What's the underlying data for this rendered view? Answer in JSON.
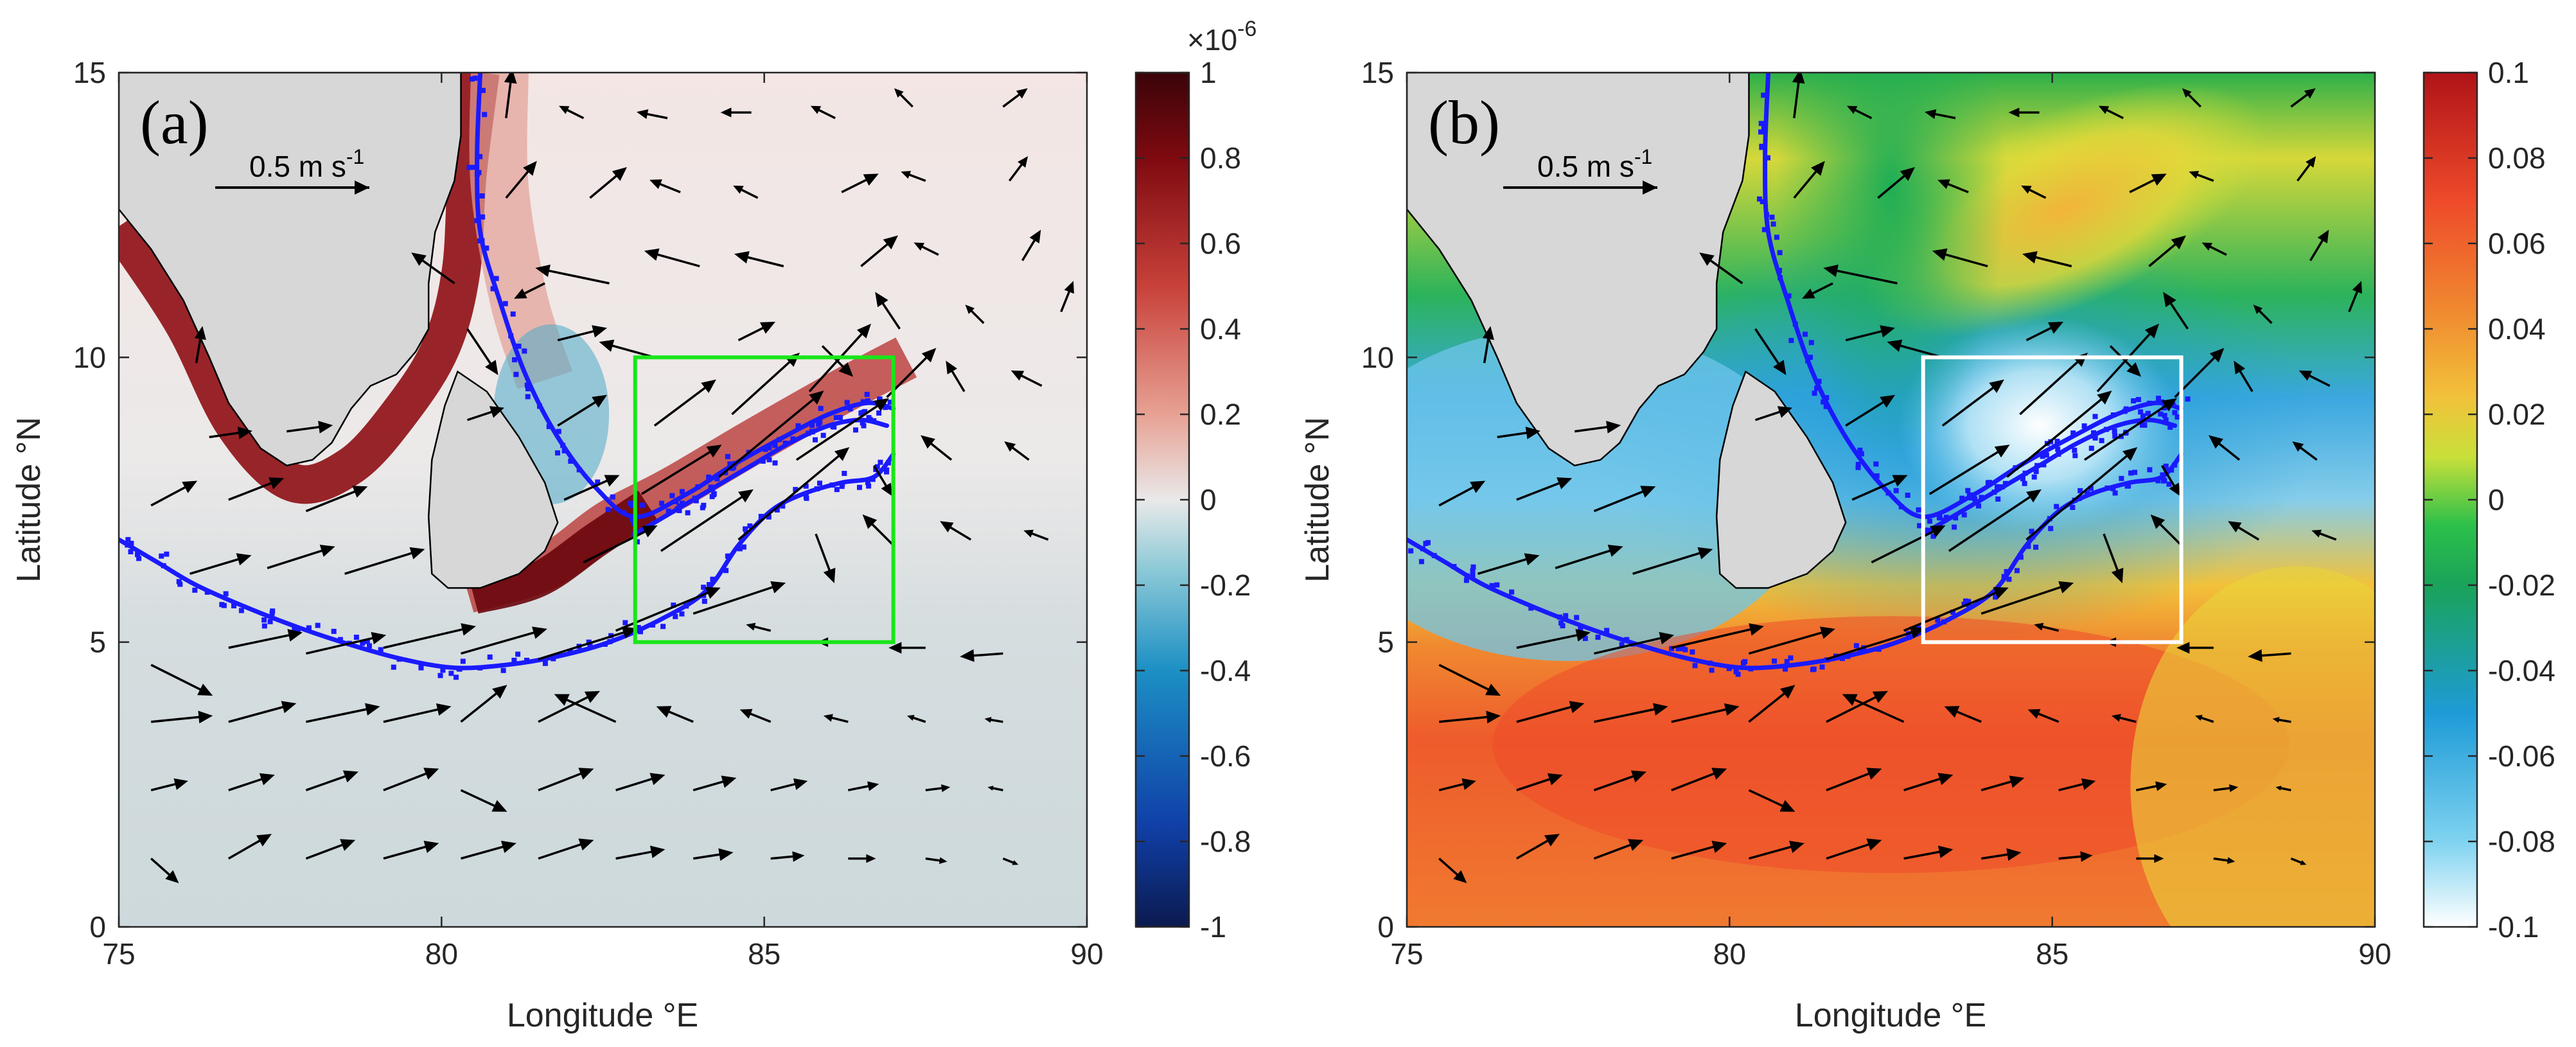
{
  "chart_data": [
    {
      "panel_label": "(a)",
      "type": "heatmap",
      "xlabel": "Longitude °E",
      "ylabel": "Latitude °N",
      "xlim": [
        75,
        90
      ],
      "ylim": [
        0,
        15
      ],
      "xticks": [
        "75",
        "80",
        "85",
        "90"
      ],
      "yticks": [
        "0",
        "5",
        "10",
        "15"
      ],
      "scale_arrow_label": "0.5 m s",
      "scale_arrow_sup": "-1",
      "colorbar": {
        "exponent_label": "×10",
        "exponent_sup": "-6",
        "range": [
          -1,
          1
        ],
        "ticks": [
          "-1",
          "-0.8",
          "-0.6",
          "-0.4",
          "-0.2",
          "0",
          "0.2",
          "0.4",
          "0.6",
          "0.8",
          "1"
        ],
        "colormap": [
          "#0b1a4f",
          "#1040a8",
          "#1c8fc4",
          "#8ecad7",
          "#e9e9e9",
          "#e7a193",
          "#c8413a",
          "#7e0a10",
          "#3a0409"
        ]
      },
      "box": {
        "lon": [
          83,
          87
        ],
        "lat": [
          5,
          10
        ],
        "color": "#19e619"
      },
      "background_color": "#f0eeee"
    },
    {
      "panel_label": "(b)",
      "type": "heatmap",
      "xlabel": "Longitude °E",
      "ylabel": "Latitude °N",
      "xlim": [
        75,
        90
      ],
      "ylim": [
        0,
        15
      ],
      "xticks": [
        "75",
        "80",
        "85",
        "90"
      ],
      "yticks": [
        "0",
        "5",
        "10",
        "15"
      ],
      "scale_arrow_label": "0.5 m s",
      "scale_arrow_sup": "-1",
      "colorbar": {
        "range": [
          -0.1,
          0.1
        ],
        "ticks": [
          "-0.1",
          "-0.08",
          "-0.06",
          "-0.04",
          "-0.02",
          "0",
          "0.02",
          "0.04",
          "0.06",
          "0.08",
          "0.1"
        ],
        "colormap": [
          "#ffffff",
          "#7fd3f0",
          "#1e9bd7",
          "#1aa35a",
          "#2cc04a",
          "#c8e03a",
          "#f2c23a",
          "#f08a30",
          "#ee4a2a",
          "#b01318"
        ]
      },
      "box": {
        "lon": [
          83,
          87
        ],
        "lat": [
          5,
          10
        ],
        "color": "#ffffff"
      }
    }
  ],
  "colors": {
    "land": "#d7d7d7",
    "contour": "#1a1aff",
    "vectors": "#000000"
  },
  "geo": {
    "india": [
      [
        75,
        12.6
      ],
      [
        75.5,
        11.9
      ],
      [
        76,
        11
      ],
      [
        76.4,
        10
      ],
      [
        76.7,
        9.2
      ],
      [
        77.2,
        8.4
      ],
      [
        77.6,
        8.1
      ],
      [
        78,
        8.2
      ],
      [
        78.3,
        8.5
      ],
      [
        78.6,
        9.1
      ],
      [
        78.9,
        9.5
      ],
      [
        79.3,
        9.7
      ],
      [
        79.6,
        10.1
      ],
      [
        79.8,
        10.5
      ],
      [
        79.8,
        11.3
      ],
      [
        79.9,
        12.2
      ],
      [
        80.2,
        13.1
      ],
      [
        80.3,
        13.9
      ],
      [
        80.3,
        15
      ],
      [
        75,
        15
      ]
    ],
    "srilanka": [
      [
        79.85,
        6.2
      ],
      [
        79.8,
        7.2
      ],
      [
        79.85,
        8.2
      ],
      [
        80.05,
        9.15
      ],
      [
        80.25,
        9.75
      ],
      [
        80.7,
        9.4
      ],
      [
        81.2,
        8.6
      ],
      [
        81.6,
        7.8
      ],
      [
        81.8,
        7.1
      ],
      [
        81.6,
        6.6
      ],
      [
        81.2,
        6.2
      ],
      [
        80.6,
        5.95
      ],
      [
        80.1,
        5.95
      ]
    ],
    "contour_main": [
      [
        75,
        6.8
      ],
      [
        75.6,
        6.4
      ],
      [
        76.2,
        6
      ],
      [
        77,
        5.6
      ],
      [
        77.8,
        5.25
      ],
      [
        78.6,
        4.95
      ],
      [
        79.4,
        4.7
      ],
      [
        80.2,
        4.55
      ],
      [
        81,
        4.6
      ],
      [
        81.8,
        4.75
      ],
      [
        82.6,
        5
      ],
      [
        83.4,
        5.4
      ],
      [
        84.1,
        5.9
      ],
      [
        84.6,
        6.7
      ],
      [
        85.1,
        7.3
      ],
      [
        85.6,
        7.6
      ],
      [
        86.2,
        7.8
      ],
      [
        86.7,
        7.9
      ],
      [
        87,
        8.3
      ]
    ],
    "contour_mid": [
      [
        83,
        6.9
      ],
      [
        83.6,
        7.3
      ],
      [
        84.2,
        7.7
      ],
      [
        84.8,
        8.1
      ],
      [
        85.4,
        8.5
      ],
      [
        86,
        8.8
      ],
      [
        86.5,
        8.9
      ],
      [
        86.9,
        8.8
      ]
    ],
    "contour_upper": [
      [
        80.6,
        15
      ],
      [
        80.55,
        13.5
      ],
      [
        80.6,
        12.2
      ],
      [
        80.9,
        11
      ],
      [
        81.3,
        9.7
      ],
      [
        81.8,
        8.6
      ],
      [
        82.4,
        7.7
      ],
      [
        83,
        7.2
      ],
      [
        83.8,
        7.6
      ],
      [
        84.5,
        8.1
      ],
      [
        85.3,
        8.6
      ],
      [
        86,
        9
      ],
      [
        86.6,
        9.2
      ],
      [
        87,
        9.1
      ]
    ],
    "vectors": [
      [
        75.5,
        1.2,
        0.09,
        -0.08
      ],
      [
        76.7,
        1.2,
        0.14,
        0.08
      ],
      [
        77.9,
        1.2,
        0.16,
        0.06
      ],
      [
        79.1,
        1.2,
        0.18,
        0.05
      ],
      [
        80.3,
        1.2,
        0.18,
        0.05
      ],
      [
        81.5,
        1.2,
        0.18,
        0.06
      ],
      [
        82.7,
        1.2,
        0.16,
        0.03
      ],
      [
        83.9,
        1.2,
        0.13,
        0.02
      ],
      [
        85.1,
        1.2,
        0.11,
        0.01
      ],
      [
        86.3,
        1.2,
        0.09,
        0
      ],
      [
        87.5,
        1.2,
        0.07,
        -0.01
      ],
      [
        88.7,
        1.2,
        0.05,
        -0.02
      ],
      [
        75.5,
        2.4,
        0.12,
        0.03
      ],
      [
        76.7,
        2.4,
        0.15,
        0.05
      ],
      [
        77.9,
        2.4,
        0.17,
        0.06
      ],
      [
        79.1,
        2.4,
        0.18,
        0.07
      ],
      [
        80.3,
        2.4,
        0.15,
        -0.07
      ],
      [
        81.5,
        2.4,
        0.18,
        0.07
      ],
      [
        82.7,
        2.4,
        0.16,
        0.05
      ],
      [
        83.9,
        2.4,
        0.14,
        0.04
      ],
      [
        85.1,
        2.4,
        0.12,
        0.03
      ],
      [
        86.3,
        2.4,
        0.1,
        0.02
      ],
      [
        87.5,
        2.4,
        0.08,
        0.01
      ],
      [
        88.7,
        2.4,
        -0.05,
        0.01
      ],
      [
        75.5,
        3.6,
        0.2,
        0.02
      ],
      [
        76.7,
        3.6,
        0.22,
        0.06
      ],
      [
        77.9,
        3.6,
        0.24,
        0.05
      ],
      [
        79.1,
        3.6,
        0.22,
        0.05
      ],
      [
        80.3,
        3.6,
        0.15,
        0.12
      ],
      [
        81.5,
        3.6,
        0.2,
        0.1
      ],
      [
        82.7,
        3.6,
        -0.2,
        0.09
      ],
      [
        83.9,
        3.6,
        -0.12,
        0.05
      ],
      [
        85.1,
        3.6,
        -0.1,
        0.04
      ],
      [
        86.3,
        3.6,
        -0.08,
        0.02
      ],
      [
        87.5,
        3.6,
        -0.06,
        0.02
      ],
      [
        88.7,
        3.6,
        -0.06,
        0.01
      ],
      [
        75.5,
        4.6,
        0.2,
        -0.1
      ],
      [
        76.7,
        4.9,
        0.24,
        0.05
      ],
      [
        77.9,
        4.8,
        0.26,
        0.06
      ],
      [
        79.1,
        4.9,
        0.3,
        0.07
      ],
      [
        80.3,
        4.8,
        0.28,
        0.08
      ],
      [
        81.5,
        4.7,
        0.32,
        0.1
      ],
      [
        82.7,
        5.2,
        0.34,
        0.14
      ],
      [
        83.9,
        5.5,
        0.3,
        0.1
      ],
      [
        85.1,
        5.2,
        -0.08,
        0.02
      ],
      [
        86.3,
        5,
        -0.1,
        0
      ],
      [
        87.5,
        4.9,
        -0.12,
        0
      ],
      [
        88.7,
        4.8,
        -0.14,
        -0.01
      ],
      [
        76.1,
        6.2,
        0.2,
        0.06
      ],
      [
        77.3,
        6.3,
        0.22,
        0.07
      ],
      [
        78.5,
        6.2,
        0.26,
        0.08
      ],
      [
        82.2,
        6.4,
        0.24,
        0.12
      ],
      [
        83.4,
        6.6,
        0.3,
        0.2
      ],
      [
        84.6,
        6.8,
        0.36,
        0.3
      ],
      [
        85.8,
        6.9,
        0.06,
        -0.16
      ],
      [
        87,
        6.7,
        -0.1,
        0.1
      ],
      [
        88.2,
        6.8,
        -0.1,
        0.06
      ],
      [
        89.4,
        6.8,
        -0.08,
        0.03
      ],
      [
        75.5,
        7.4,
        0.15,
        0.08
      ],
      [
        76.7,
        7.5,
        0.18,
        0.07
      ],
      [
        77.9,
        7.3,
        0.2,
        0.08
      ],
      [
        81.9,
        7.5,
        0.18,
        0.08
      ],
      [
        83.1,
        7.6,
        0.26,
        0.16
      ],
      [
        84.3,
        7.9,
        0.34,
        0.28
      ],
      [
        85.5,
        8.2,
        0.3,
        0.2
      ],
      [
        86.7,
        8.1,
        0.06,
        -0.1
      ],
      [
        87.9,
        8.2,
        -0.1,
        0.08
      ],
      [
        89.1,
        8.2,
        -0.08,
        0.06
      ],
      [
        76.4,
        8.6,
        0.14,
        0.02
      ],
      [
        77.6,
        8.7,
        0.15,
        0.02
      ],
      [
        80.4,
        8.9,
        0.12,
        0.04
      ],
      [
        81.8,
        8.8,
        0.16,
        0.1
      ],
      [
        83.3,
        8.8,
        0.2,
        0.15
      ],
      [
        84.5,
        9,
        0.22,
        0.2
      ],
      [
        85.7,
        9.4,
        0.2,
        0.22
      ],
      [
        86.9,
        9.3,
        0.16,
        0.16
      ],
      [
        88.1,
        9.4,
        -0.06,
        0.1
      ],
      [
        89.3,
        9.5,
        -0.1,
        0.05
      ],
      [
        76.2,
        9.9,
        0.02,
        0.12
      ],
      [
        80.4,
        10.5,
        0.1,
        -0.15
      ],
      [
        81.8,
        10.3,
        0.16,
        0.04
      ],
      [
        83.3,
        10,
        -0.18,
        0.05
      ],
      [
        84.6,
        10.3,
        0.12,
        0.06
      ],
      [
        85.9,
        10.2,
        0.1,
        -0.1
      ],
      [
        87.1,
        10.5,
        -0.08,
        0.12
      ],
      [
        88.4,
        10.6,
        -0.06,
        0.06
      ],
      [
        89.6,
        10.8,
        0.04,
        0.1
      ],
      [
        80.2,
        11.3,
        -0.14,
        0.1
      ],
      [
        81.6,
        11.3,
        -0.1,
        -0.05
      ],
      [
        82.6,
        11.3,
        -0.24,
        0.05
      ],
      [
        84,
        11.6,
        -0.18,
        0.05
      ],
      [
        85.3,
        11.6,
        -0.16,
        0.04
      ],
      [
        86.5,
        11.6,
        0.12,
        0.1
      ],
      [
        87.7,
        11.8,
        -0.08,
        0.04
      ],
      [
        89,
        11.7,
        0.06,
        0.1
      ],
      [
        81,
        12.8,
        0.1,
        0.12
      ],
      [
        82.3,
        12.8,
        0.12,
        0.1
      ],
      [
        83.7,
        12.9,
        -0.1,
        0.04
      ],
      [
        84.9,
        12.8,
        -0.08,
        0.04
      ],
      [
        86.2,
        12.9,
        0.12,
        0.06
      ],
      [
        87.5,
        13.1,
        -0.08,
        0.03
      ],
      [
        88.8,
        13.1,
        0.06,
        0.08
      ],
      [
        81,
        14.2,
        0.02,
        0.16
      ],
      [
        82.2,
        14.2,
        -0.08,
        0.04
      ],
      [
        83.5,
        14.2,
        -0.1,
        0.02
      ],
      [
        84.8,
        14.3,
        -0.1,
        0
      ],
      [
        86.1,
        14.2,
        -0.08,
        0.04
      ],
      [
        87.3,
        14.4,
        -0.06,
        0.06
      ],
      [
        88.7,
        14.4,
        0.08,
        0.06
      ]
    ]
  }
}
